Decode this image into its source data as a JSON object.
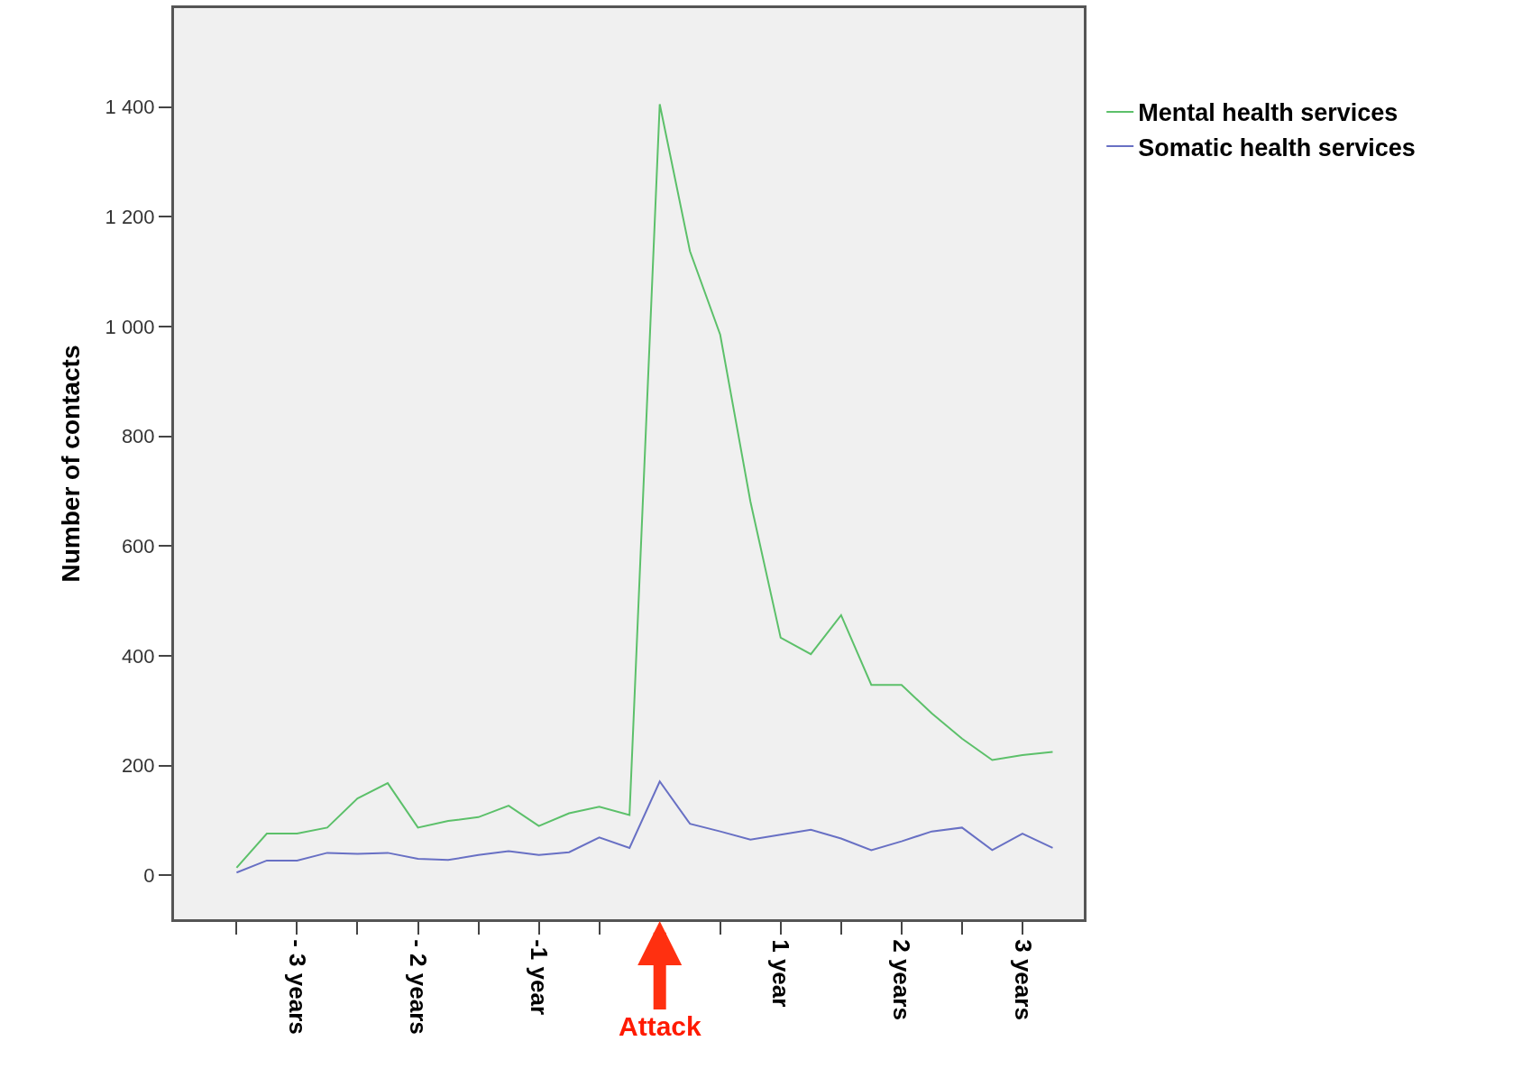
{
  "chart_data": {
    "type": "line",
    "ylabel": "Number of contacts",
    "categories": [
      null,
      null,
      "- 3 years",
      null,
      null,
      null,
      "- 2 years",
      null,
      null,
      null,
      "-1 year",
      null,
      null,
      null,
      null,
      null,
      null,
      null,
      "1 year",
      null,
      null,
      null,
      "2 years",
      null,
      null,
      null,
      "3 years",
      null
    ],
    "series": [
      {
        "name": "Mental health services",
        "color": "#5cc06a",
        "values": [
          14,
          76,
          76,
          87,
          140,
          168,
          87,
          99,
          106,
          127,
          90,
          113,
          125,
          110,
          1405,
          1137,
          985,
          681,
          433,
          403,
          474,
          347,
          347,
          295,
          249,
          210,
          219,
          225
        ]
      },
      {
        "name": "Somatic health services",
        "color": "#6870c4",
        "values": [
          5,
          27,
          27,
          41,
          39,
          41,
          30,
          28,
          37,
          44,
          37,
          42,
          69,
          50,
          171,
          94,
          80,
          65,
          74,
          83,
          67,
          46,
          62,
          80,
          87,
          46,
          76,
          50
        ]
      }
    ],
    "ylim": [
      -80,
      1580
    ],
    "yticks": [
      0,
      200,
      400,
      600,
      800,
      {
        "value": 1000,
        "label": "1 000"
      },
      {
        "value": 1200,
        "label": "1 200"
      },
      {
        "value": 1400,
        "label": "1 400"
      }
    ],
    "annotations": [
      "Attack"
    ],
    "grid": false,
    "legend": "top right",
    "marker": "none",
    "line_style": "solid"
  }
}
